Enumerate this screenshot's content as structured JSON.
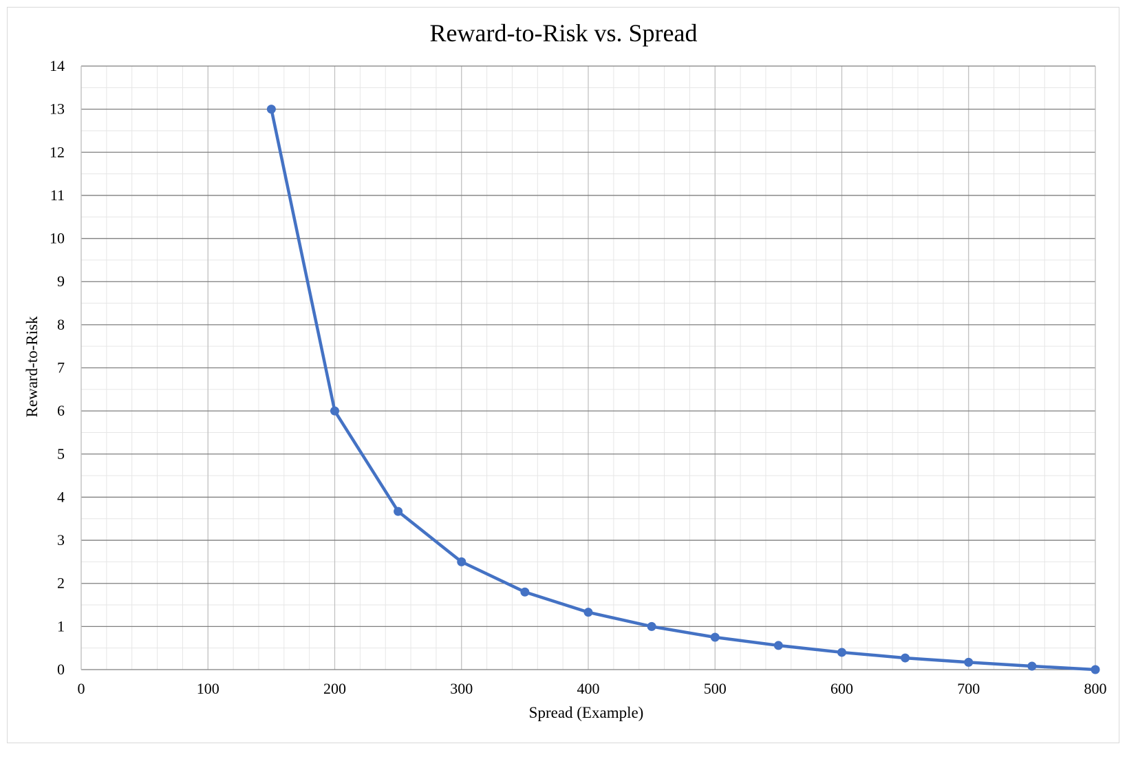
{
  "chart_data": {
    "type": "line",
    "title": "Reward-to-Risk vs. Spread",
    "xlabel": "Spread (Example)",
    "ylabel": "Reward-to-Risk",
    "xlim": [
      0,
      800
    ],
    "ylim": [
      0,
      14
    ],
    "x_ticks": [
      0,
      100,
      200,
      300,
      400,
      500,
      600,
      700,
      800
    ],
    "y_ticks": [
      0,
      1,
      2,
      3,
      4,
      5,
      6,
      7,
      8,
      9,
      10,
      11,
      12,
      13,
      14
    ],
    "x_minor_step": 20,
    "y_minor_step": 0.5,
    "grid": true,
    "legend": "none",
    "series": [
      {
        "color": "#4472c4",
        "x": [
          150,
          200,
          250,
          300,
          350,
          400,
          450,
          500,
          550,
          600,
          650,
          700,
          750,
          800
        ],
        "y": [
          13.0,
          6.0,
          3.67,
          2.5,
          1.8,
          1.33,
          1.0,
          0.75,
          0.56,
          0.4,
          0.27,
          0.17,
          0.08,
          0.0
        ]
      }
    ]
  },
  "colors": {
    "major_h_grid": "#7f7f7f",
    "major_v_grid": "#bfbfbf",
    "minor_grid": "#e6e6e6",
    "frame_border": "#d9d9d9"
  }
}
